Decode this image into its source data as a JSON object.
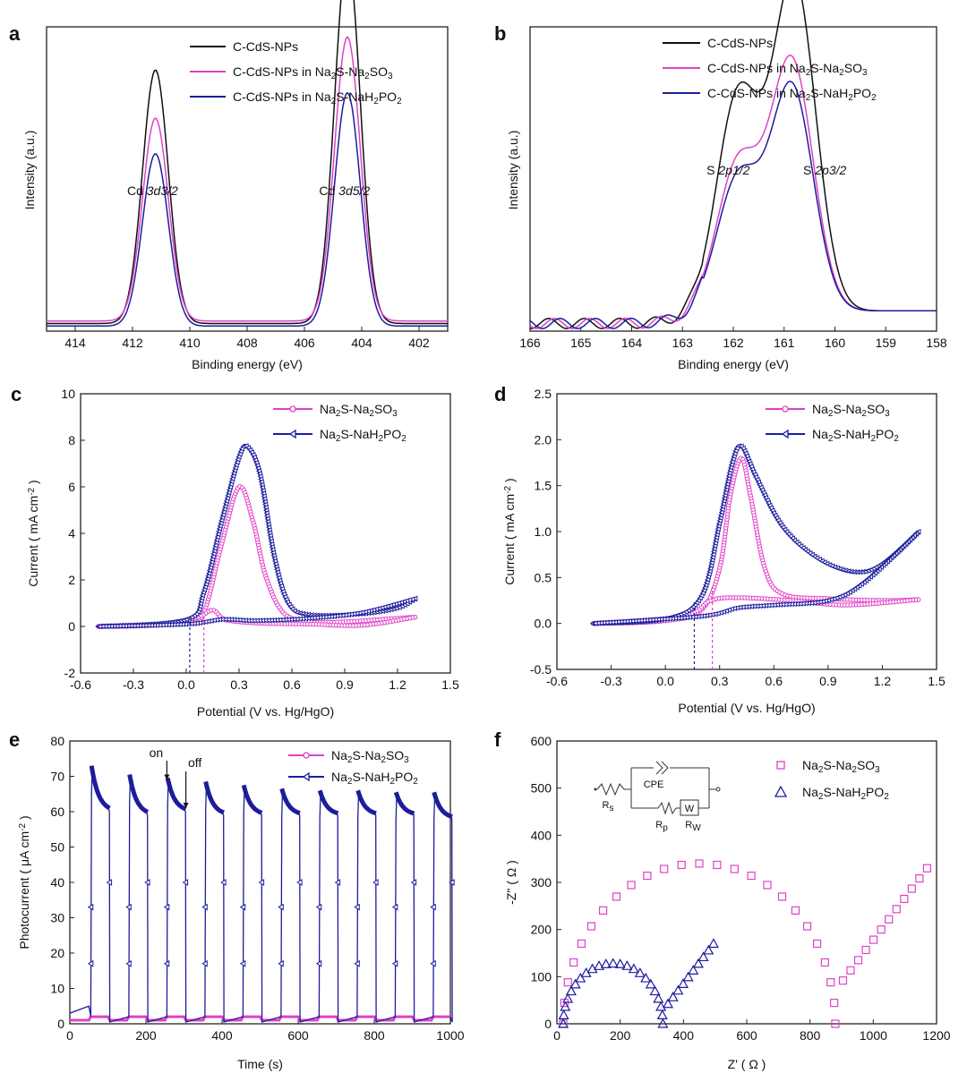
{
  "colors": {
    "black": "#111111",
    "magenta": "#e040c8",
    "navy": "#1c1c9c"
  },
  "chart_data": [
    {
      "panel": "a",
      "type": "line",
      "xlabel": "Binding energy (eV)",
      "ylabel": "Intensity (a.u.)",
      "xlim": [
        415,
        401
      ],
      "ylim": [
        0,
        1.2
      ],
      "xticks": [
        414,
        412,
        410,
        408,
        406,
        404,
        402
      ],
      "legend": "top-center",
      "annotations": [
        {
          "text": "Cd ",
          "italic": "3d3/2",
          "x": 411.3
        },
        {
          "text": "Cd ",
          "italic": "3d5/2",
          "x": 404.6
        }
      ],
      "series": [
        {
          "name": "C-CdS-NPs",
          "color": "#111111",
          "peaks": [
            [
              411.2,
              1.0
            ],
            [
              404.5,
              1.45
            ]
          ],
          "base": 0.03
        },
        {
          "name": "C-CdS-NPs in Na2S-Na2SO3",
          "color": "#e040c8",
          "peaks": [
            [
              411.2,
              0.8
            ],
            [
              404.5,
              1.12
            ]
          ],
          "base": 0.04
        },
        {
          "name": "C-CdS-NPs in Na2S-NaH2PO2",
          "color": "#1c1c9c",
          "peaks": [
            [
              411.2,
              0.68
            ],
            [
              404.5,
              0.92
            ]
          ],
          "base": 0.02
        }
      ]
    },
    {
      "panel": "b",
      "type": "line",
      "xlabel": "Binding energy (eV)",
      "ylabel": "Intensity (a.u.)",
      "xlim": [
        166,
        158
      ],
      "ylim": [
        0,
        1.2
      ],
      "xticks": [
        166,
        165,
        164,
        163,
        162,
        161,
        160,
        159,
        158
      ],
      "legend": "top-center",
      "annotations": [
        {
          "text": "S ",
          "italic": "2p1/2",
          "x": 162.1
        },
        {
          "text": "S ",
          "italic": "2p3/2",
          "x": 160.2
        }
      ],
      "series": [
        {
          "name": "C-CdS-NPs",
          "color": "#111111",
          "peaks": [
            [
              161.9,
              0.85
            ],
            [
              160.8,
              1.3
            ]
          ],
          "base": 0.03
        },
        {
          "name": "C-CdS-NPs in Na2S-Na2SO3",
          "color": "#e040c8",
          "peaks": [
            [
              161.9,
              0.58
            ],
            [
              160.85,
              0.98
            ]
          ],
          "base": 0.03
        },
        {
          "name": "C-CdS-NPs in Na2S-NaH2PO2",
          "color": "#1c1c9c",
          "peaks": [
            [
              161.9,
              0.52
            ],
            [
              160.85,
              0.88
            ]
          ],
          "base": 0.03
        }
      ]
    },
    {
      "panel": "c",
      "type": "line",
      "xlabel": "Potential (V vs. Hg/HgO)",
      "ylabel": "Current ( mA cm-2 )",
      "xlim": [
        -0.6,
        1.5
      ],
      "ylim": [
        -2,
        10
      ],
      "xticks": [
        -0.6,
        -0.3,
        0.0,
        0.3,
        0.6,
        0.9,
        1.2,
        1.5
      ],
      "yticks": [
        -2,
        0,
        2,
        4,
        6,
        8,
        10
      ],
      "legend": "top-right",
      "onset": [
        {
          "series": "Na2S-NaH2PO2",
          "x": 0.02
        },
        {
          "series": "Na2S-Na2SO3",
          "x": 0.1
        }
      ],
      "series": [
        {
          "name": "Na2S-Na2SO3",
          "color": "#e040c8",
          "forward": [
            [
              -0.5,
              0
            ],
            [
              0,
              0.15
            ],
            [
              0.1,
              0.6
            ],
            [
              0.2,
              3.5
            ],
            [
              0.3,
              6.0
            ],
            [
              0.38,
              4.5
            ],
            [
              0.45,
              2.2
            ],
            [
              0.55,
              0.6
            ],
            [
              0.7,
              0.2
            ],
            [
              0.9,
              0.2
            ],
            [
              1.1,
              0.3
            ],
            [
              1.3,
              0.4
            ]
          ],
          "reverse": [
            [
              1.3,
              0.4
            ],
            [
              1.0,
              0.05
            ],
            [
              0.7,
              0.1
            ],
            [
              0.4,
              0.15
            ],
            [
              0.22,
              0.3
            ],
            [
              0.15,
              0.7
            ],
            [
              0.05,
              0.35
            ],
            [
              -0.2,
              0.05
            ],
            [
              -0.5,
              0
            ]
          ]
        },
        {
          "name": "Na2S-NaH2PO2",
          "color": "#1c1c9c",
          "forward": [
            [
              -0.5,
              0
            ],
            [
              0,
              0.3
            ],
            [
              0.1,
              1.5
            ],
            [
              0.2,
              4.5
            ],
            [
              0.3,
              7.3
            ],
            [
              0.35,
              7.7
            ],
            [
              0.42,
              6.5
            ],
            [
              0.5,
              3.0
            ],
            [
              0.58,
              1.0
            ],
            [
              0.7,
              0.5
            ],
            [
              1.0,
              0.55
            ],
            [
              1.2,
              0.8
            ],
            [
              1.3,
              1.2
            ]
          ],
          "reverse": [
            [
              1.3,
              1.2
            ],
            [
              1.0,
              0.6
            ],
            [
              0.7,
              0.35
            ],
            [
              0.4,
              0.25
            ],
            [
              0.2,
              0.3
            ],
            [
              0,
              0.1
            ],
            [
              -0.5,
              0
            ]
          ]
        }
      ]
    },
    {
      "panel": "d",
      "type": "line",
      "xlabel": "Potential (V vs. Hg/HgO)",
      "ylabel": "Current ( mA cm-2 )",
      "xlim": [
        -0.6,
        1.5
      ],
      "ylim": [
        -0.5,
        2.5
      ],
      "xticks": [
        -0.6,
        -0.3,
        0.0,
        0.3,
        0.6,
        0.9,
        1.2,
        1.5
      ],
      "yticks": [
        -0.5,
        0.0,
        0.5,
        1.0,
        1.5,
        2.0,
        2.5
      ],
      "legend": "top-right",
      "onset": [
        {
          "series": "Na2S-NaH2PO2",
          "x": 0.16
        },
        {
          "series": "Na2S-Na2SO3",
          "x": 0.26
        }
      ],
      "series": [
        {
          "name": "Na2S-Na2SO3",
          "color": "#e040c8",
          "forward": [
            [
              -0.4,
              0
            ],
            [
              0,
              0.03
            ],
            [
              0.2,
              0.15
            ],
            [
              0.3,
              0.6
            ],
            [
              0.36,
              1.4
            ],
            [
              0.42,
              1.8
            ],
            [
              0.47,
              1.4
            ],
            [
              0.55,
              0.6
            ],
            [
              0.65,
              0.32
            ],
            [
              0.9,
              0.27
            ],
            [
              1.2,
              0.25
            ],
            [
              1.4,
              0.26
            ]
          ],
          "reverse": [
            [
              1.4,
              0.26
            ],
            [
              1.0,
              0.2
            ],
            [
              0.7,
              0.25
            ],
            [
              0.4,
              0.28
            ],
            [
              0.25,
              0.25
            ],
            [
              0.1,
              0.08
            ],
            [
              -0.4,
              0
            ]
          ]
        },
        {
          "name": "Na2S-NaH2PO2",
          "color": "#1c1c9c",
          "forward": [
            [
              -0.4,
              0
            ],
            [
              0,
              0.05
            ],
            [
              0.2,
              0.3
            ],
            [
              0.3,
              1.1
            ],
            [
              0.37,
              1.75
            ],
            [
              0.42,
              1.93
            ],
            [
              0.5,
              1.6
            ],
            [
              0.65,
              1.05
            ],
            [
              0.85,
              0.7
            ],
            [
              1.05,
              0.56
            ],
            [
              1.2,
              0.65
            ],
            [
              1.4,
              1.0
            ]
          ],
          "reverse": [
            [
              1.4,
              1.0
            ],
            [
              1.1,
              0.45
            ],
            [
              0.9,
              0.25
            ],
            [
              0.6,
              0.2
            ],
            [
              0.4,
              0.17
            ],
            [
              0.2,
              0.08
            ],
            [
              -0.4,
              0
            ]
          ]
        }
      ]
    },
    {
      "panel": "e",
      "type": "line",
      "xlabel": "Time (s)",
      "ylabel": "Photocurrent ( μA cm-2 )",
      "xlim": [
        0,
        1000
      ],
      "ylim": [
        0,
        80
      ],
      "xticks": [
        0,
        200,
        400,
        600,
        800,
        1000
      ],
      "yticks": [
        0,
        10,
        20,
        30,
        40,
        50,
        60,
        70,
        80
      ],
      "legend": "top-right",
      "annotations": [
        {
          "text": "on",
          "x": 255
        },
        {
          "text": "off",
          "x": 305
        }
      ],
      "series": [
        {
          "name": "Na2S-Na2SO3",
          "color": "#e040c8",
          "level_on": 2,
          "level_off": 1
        },
        {
          "name": "Na2S-NaH2PO2",
          "color": "#1c1c9c",
          "on_times": [
            55,
            155,
            255,
            355,
            455,
            555,
            655,
            755,
            855,
            955
          ],
          "peaks": [
            73,
            70.5,
            69.5,
            68.5,
            67.5,
            66.5,
            66,
            66,
            65.5,
            65.5
          ],
          "ends": [
            60,
            59,
            60,
            59,
            59,
            59,
            59,
            59,
            59,
            58
          ],
          "off_level": 2
        }
      ]
    },
    {
      "panel": "f",
      "type": "scatter",
      "xlabel": "Z' ( Ω )",
      "ylabel": "-Z\" ( Ω )",
      "xlim": [
        0,
        1200
      ],
      "ylim": [
        0,
        600
      ],
      "xticks": [
        0,
        200,
        400,
        600,
        800,
        1000,
        1200
      ],
      "yticks": [
        0,
        100,
        200,
        300,
        400,
        500,
        600
      ],
      "legend": "top-right",
      "inset_labels": [
        "CPE",
        "Rs",
        "Rp",
        "W",
        "RW"
      ],
      "series": [
        {
          "name": "Na2S-Na2SO3",
          "color": "#e040c8",
          "marker": "square",
          "arc": {
            "x0": 20,
            "x1": 880,
            "ymax": 340
          },
          "tail": [
            [
              880,
              70
            ],
            [
              1170,
              330
            ]
          ]
        },
        {
          "name": "Na2S-NaH2PO2",
          "color": "#1c1c9c",
          "marker": "triangle",
          "arc": {
            "x0": 20,
            "x1": 335,
            "ymax": 128
          },
          "tail": [
            [
              335,
              28
            ],
            [
              495,
              170
            ]
          ]
        }
      ]
    }
  ]
}
